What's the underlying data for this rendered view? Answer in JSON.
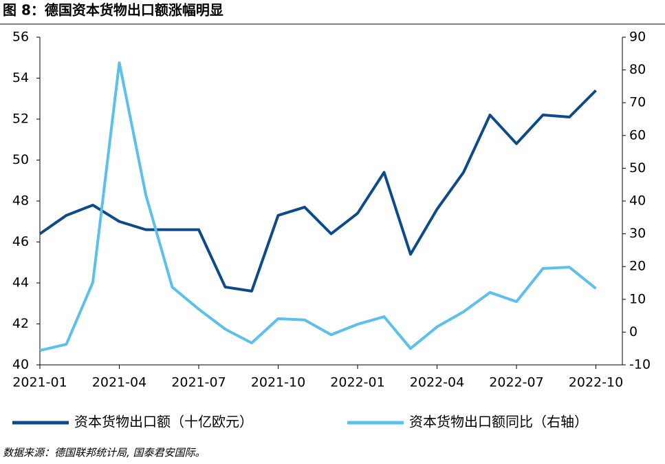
{
  "chart_data": {
    "type": "line",
    "title": "图 8：德国资本货物出口额涨幅明显",
    "source": "数据来源：德国联邦统计局, 国泰君安国际。",
    "categories": [
      "2021-01",
      null,
      null,
      "2021-04",
      null,
      null,
      "2021-07",
      null,
      null,
      "2021-10",
      null,
      null,
      "2022-01",
      null,
      null,
      "2022-04",
      null,
      null,
      "2022-07",
      null,
      null,
      "2022-10"
    ],
    "series": [
      {
        "name": "资本货物出口额（十亿欧元）",
        "color": "#0d4a8c",
        "values": [
          46.4,
          47.3,
          47.8,
          47.0,
          46.6,
          46.6,
          46.6,
          43.8,
          43.6,
          47.3,
          47.7,
          46.4,
          47.4,
          49.4,
          45.4,
          47.6,
          49.4,
          52.2,
          50.8,
          52.2,
          52.1,
          53.4
        ]
      },
      {
        "name": "资本货物出口额同比（右轴）",
        "color": "#5bc0eb",
        "axis": "y2",
        "values": [
          -5.6,
          -3.7,
          15.2,
          82.2,
          41.9,
          13.7,
          7.0,
          0.9,
          -3.3,
          4.1,
          3.7,
          -0.8,
          2.4,
          4.7,
          -5.0,
          1.6,
          6.2,
          12.1,
          9.3,
          19.4,
          19.8,
          13.3
        ]
      }
    ],
    "ylim": [
      40,
      56
    ],
    "yticks": [
      40,
      42,
      44,
      46,
      48,
      50,
      52,
      54,
      56
    ],
    "y2lim": [
      -10,
      90
    ],
    "y2ticks": [
      -10,
      0,
      10,
      20,
      30,
      40,
      50,
      60,
      70,
      80,
      90
    ]
  }
}
